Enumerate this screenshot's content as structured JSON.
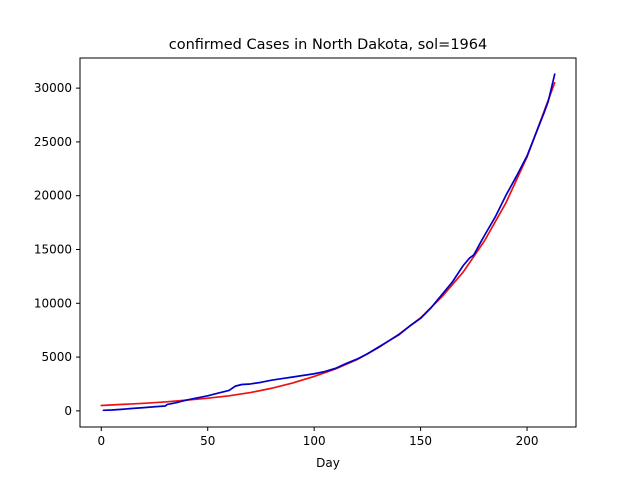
{
  "chart_data": {
    "type": "line",
    "title": "confirmed Cases in North Dakota, sol=1964",
    "xlabel": "Day",
    "ylabel": "",
    "xlim": [
      -10,
      223
    ],
    "ylim": [
      -1500,
      32800
    ],
    "xticks": [
      0,
      50,
      100,
      150,
      200
    ],
    "yticks": [
      0,
      5000,
      10000,
      15000,
      20000,
      25000,
      30000
    ],
    "grid": false,
    "series": [
      {
        "color": "#ee1111",
        "x": [
          0,
          10,
          20,
          30,
          40,
          50,
          60,
          70,
          80,
          90,
          100,
          110,
          120,
          130,
          140,
          150,
          160,
          170,
          180,
          190,
          200,
          210,
          213
        ],
        "values": [
          500,
          600,
          700,
          830,
          1000,
          1180,
          1400,
          1700,
          2100,
          2600,
          3200,
          3900,
          4750,
          5850,
          7150,
          8650,
          10600,
          12900,
          15800,
          19300,
          23600,
          28900,
          30500
        ]
      },
      {
        "color": "#0000cc",
        "x": [
          1,
          5,
          10,
          15,
          20,
          25,
          30,
          31,
          35,
          40,
          45,
          50,
          55,
          60,
          63,
          66,
          70,
          75,
          80,
          85,
          90,
          95,
          100,
          105,
          110,
          115,
          120,
          125,
          130,
          135,
          140,
          145,
          150,
          155,
          160,
          165,
          170,
          173,
          175,
          178,
          180,
          185,
          190,
          195,
          200,
          205,
          208,
          210,
          213
        ],
        "values": [
          50,
          80,
          150,
          230,
          300,
          380,
          450,
          600,
          750,
          1000,
          1200,
          1400,
          1650,
          1900,
          2300,
          2450,
          2500,
          2650,
          2850,
          3000,
          3150,
          3300,
          3450,
          3650,
          3950,
          4400,
          4800,
          5300,
          5900,
          6500,
          7100,
          7900,
          8600,
          9600,
          10800,
          12000,
          13500,
          14200,
          14500,
          15600,
          16300,
          18000,
          20000,
          21800,
          23700,
          26200,
          27700,
          28800,
          31300
        ]
      }
    ]
  }
}
